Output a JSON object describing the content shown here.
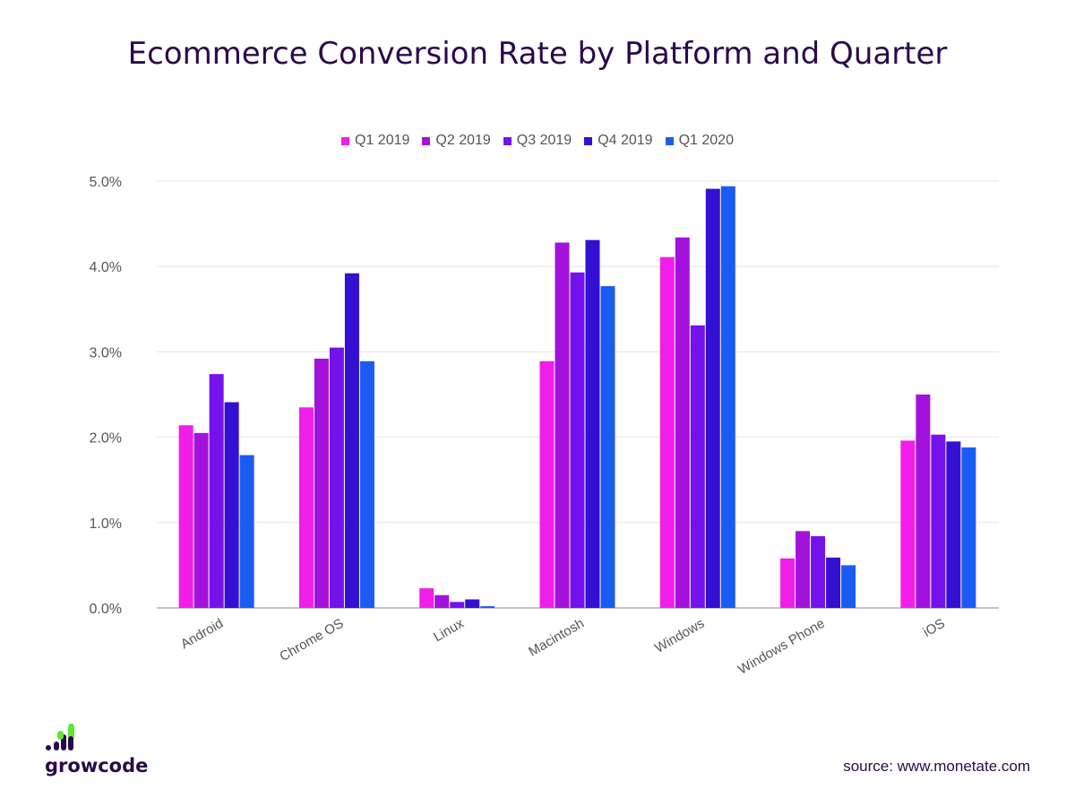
{
  "chart_data": {
    "type": "bar",
    "title": "Ecommerce Conversion Rate by Platform and Quarter",
    "categories": [
      "Android",
      "Chrome OS",
      "Linux",
      "Macintosh",
      "Windows",
      "Windows Phone",
      "iOS"
    ],
    "series": [
      {
        "name": "Q1 2019",
        "color": "#f01ee8",
        "values": [
          2.14,
          2.35,
          0.23,
          2.89,
          4.11,
          0.58,
          1.96
        ]
      },
      {
        "name": "Q2 2019",
        "color": "#a312dc",
        "values": [
          2.05,
          2.92,
          0.15,
          4.28,
          4.34,
          0.9,
          2.5
        ]
      },
      {
        "name": "Q3 2019",
        "color": "#7412ec",
        "values": [
          2.74,
          3.05,
          0.07,
          3.93,
          3.31,
          0.84,
          2.03
        ]
      },
      {
        "name": "Q4 2019",
        "color": "#3410d2",
        "values": [
          2.41,
          3.92,
          0.1,
          4.31,
          4.91,
          0.59,
          1.95
        ]
      },
      {
        "name": "Q1 2020",
        "color": "#1a5cf2",
        "values": [
          1.79,
          2.89,
          0.02,
          3.77,
          4.94,
          0.5,
          1.88
        ]
      }
    ],
    "yticks": [
      "0.0%",
      "1.0%",
      "2.0%",
      "3.0%",
      "4.0%",
      "5.0%"
    ],
    "ylim": [
      0,
      5
    ],
    "yunit": "%",
    "grid": true,
    "legend": "top-center"
  },
  "brand": {
    "name": "growcode",
    "colors": {
      "dark": "#2a0a4a",
      "green": "#5ee830"
    }
  },
  "source": "source: www.monetate.com"
}
